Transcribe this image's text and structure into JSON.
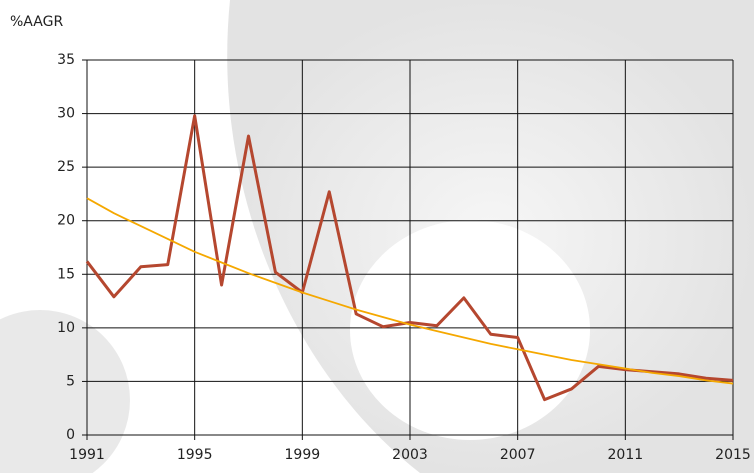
{
  "chart_data": {
    "type": "line",
    "ylabel": "%AAGR",
    "x": [
      1991,
      1992,
      1993,
      1994,
      1995,
      1996,
      1997,
      1998,
      1999,
      2000,
      2001,
      2002,
      2003,
      2004,
      2005,
      2006,
      2007,
      2008,
      2009,
      2010,
      2011,
      2012,
      2013,
      2014,
      2015
    ],
    "series": [
      {
        "color": "#b5472f",
        "width": 3,
        "values": [
          16.2,
          12.9,
          15.7,
          15.9,
          29.8,
          14.0,
          27.9,
          15.2,
          13.3,
          22.7,
          11.3,
          10.1,
          10.5,
          10.2,
          12.8,
          9.4,
          9.1,
          3.3,
          4.3,
          6.4,
          6.1,
          5.9,
          5.7,
          5.3,
          5.1
        ]
      },
      {
        "color": "#f5a800",
        "width": 1.8,
        "values": [
          22.1,
          20.7,
          19.5,
          18.3,
          17.1,
          16.1,
          15.1,
          14.2,
          13.3,
          12.5,
          11.7,
          11.0,
          10.3,
          9.7,
          9.1,
          8.5,
          8.0,
          7.5,
          7.0,
          6.6,
          6.2,
          5.8,
          5.5,
          5.1,
          4.8
        ]
      }
    ],
    "xlim": [
      1991,
      2015
    ],
    "xticks": [
      1991,
      1995,
      1999,
      2003,
      2007,
      2011,
      2015
    ],
    "ylim": [
      0,
      35
    ],
    "yticks": [
      0,
      5,
      10,
      15,
      20,
      25,
      30,
      35
    ],
    "grid": true
  }
}
